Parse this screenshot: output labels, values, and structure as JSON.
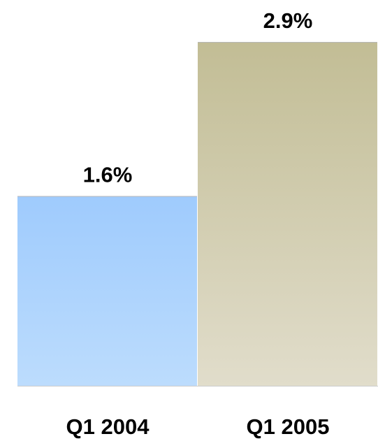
{
  "chart_data": {
    "type": "bar",
    "categories": [
      "Q1 2004",
      "Q1 2005"
    ],
    "values": [
      1.6,
      2.9
    ],
    "data_labels": [
      "1.6%",
      "2.9%"
    ],
    "title": "",
    "xlabel": "",
    "ylabel": "",
    "ylim": [
      0,
      2.9
    ],
    "grid": false,
    "legend": "none",
    "colors": {
      "bars": [
        {
          "top": "#9fcbfd",
          "bottom": "#bcdcfd"
        },
        {
          "top": "#c2bd95",
          "bottom": "#e1ddcb"
        }
      ],
      "baseline": "#cccccc",
      "bar_edge": "#b7b7b7"
    }
  }
}
